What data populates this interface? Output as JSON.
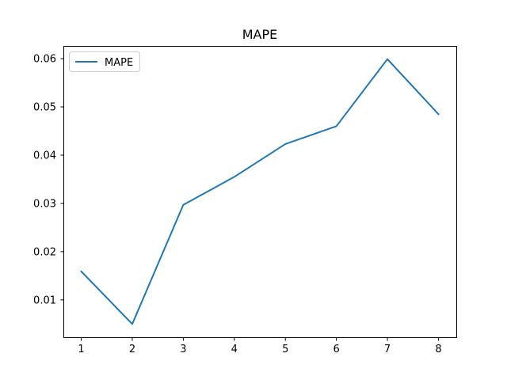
{
  "chart_data": {
    "type": "line",
    "title": "MAPE",
    "xlabel": "",
    "ylabel": "",
    "x": [
      1,
      2,
      3,
      4,
      5,
      6,
      7,
      8
    ],
    "series": [
      {
        "name": "MAPE",
        "values": [
          0.0159,
          0.005,
          0.0297,
          0.0355,
          0.0423,
          0.046,
          0.0599,
          0.0485
        ],
        "color": "#1f77b4"
      }
    ],
    "xlim": [
      0.65,
      8.35
    ],
    "ylim": [
      0.00226,
      0.06264
    ],
    "xticks": [
      1,
      2,
      3,
      4,
      5,
      6,
      7,
      8
    ],
    "xtick_labels": [
      "1",
      "2",
      "3",
      "4",
      "5",
      "6",
      "7",
      "8"
    ],
    "yticks": [
      0.01,
      0.02,
      0.03,
      0.04,
      0.05,
      0.06
    ],
    "ytick_labels": [
      "0.01",
      "0.02",
      "0.03",
      "0.04",
      "0.05",
      "0.06"
    ],
    "grid": false,
    "legend": {
      "position": "top-left"
    }
  }
}
